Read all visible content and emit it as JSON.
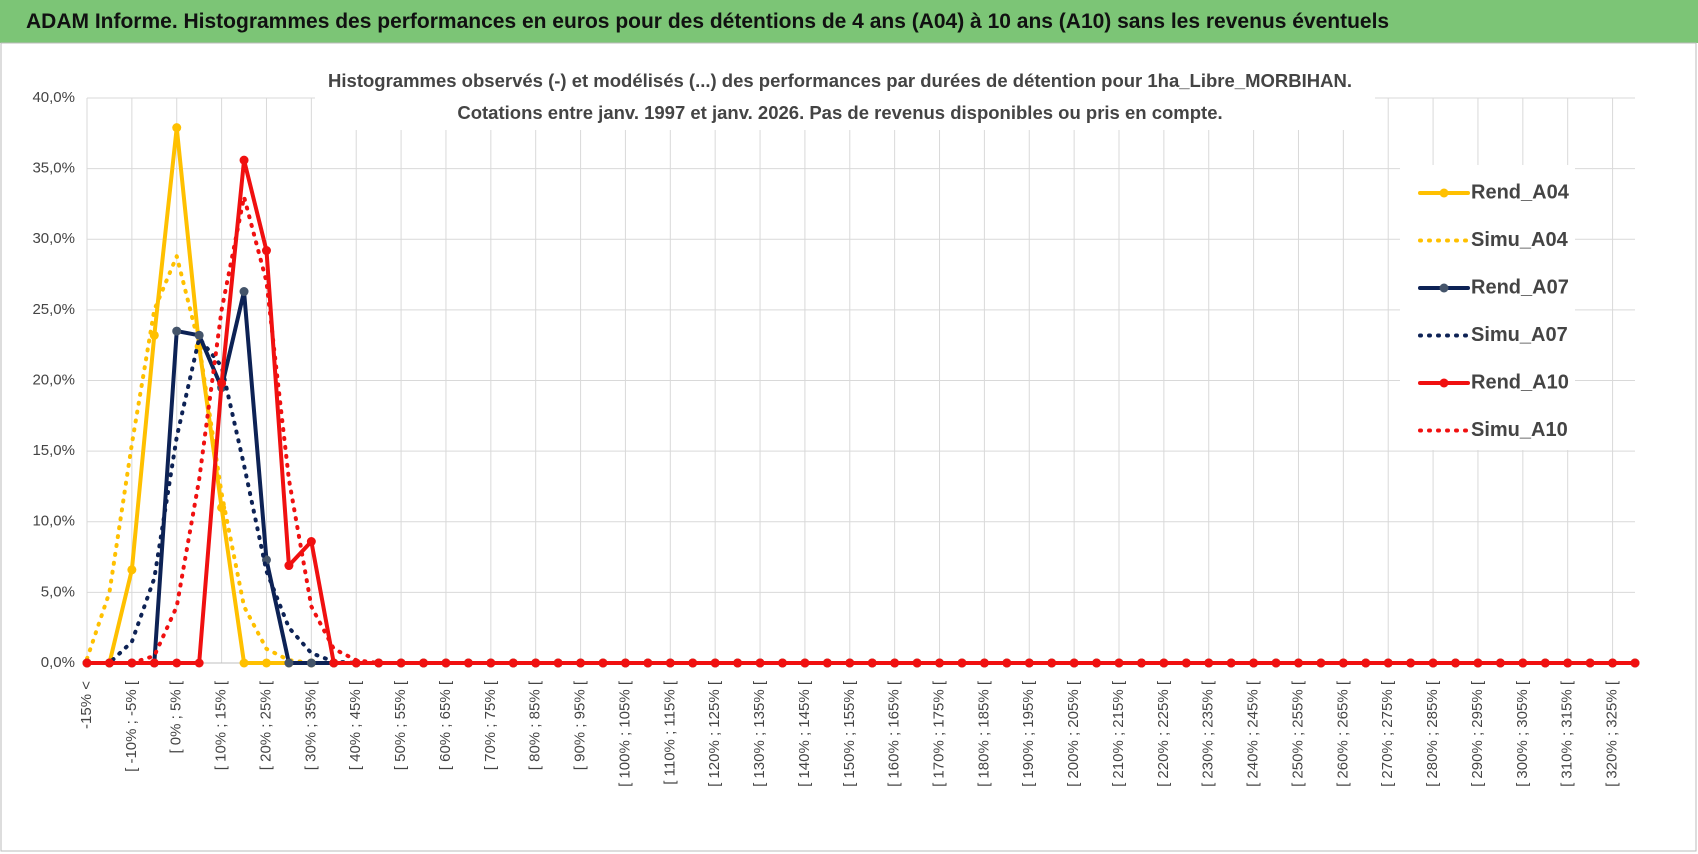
{
  "header": {
    "title": "ADAM Informe. Histogrammes des performances en euros pour des détentions de 4 ans (A04) à 10 ans (A10) sans les revenus éventuels"
  },
  "chart_data": {
    "type": "line",
    "title": "Histogrammes observés (-) et modélisés (...) des performances par durées de détention pour 1ha_Libre_MORBIHAN.",
    "subtitle": "Cotations entre janv. 1997 et janv. 2026. Pas de revenus disponibles ou pris en compte.",
    "categories": [
      "-15% <",
      null,
      "[ -10% ; -5% [",
      null,
      "[ 0% ; 5% [",
      null,
      "[ 10% ; 15% [",
      null,
      "[ 20% ; 25% [",
      null,
      "[ 30% ; 35% [",
      null,
      "[ 40% ; 45% [",
      null,
      "[ 50% ; 55% [",
      null,
      "[ 60% ; 65% [",
      null,
      "[ 70% ; 75% [",
      null,
      "[ 80% ; 85% [",
      null,
      "[ 90% ; 95% [",
      null,
      "[ 100% ; 105% [",
      null,
      "[ 110% ; 115% [",
      null,
      "[ 120% ; 125% [",
      null,
      "[ 130% ; 135% [",
      null,
      "[ 140% ; 145% [",
      null,
      "[ 150% ; 155% [",
      null,
      "[ 160% ; 165% [",
      null,
      "[ 170% ; 175% [",
      null,
      "[ 180% ; 185% [",
      null,
      "[ 190% ; 195% [",
      null,
      "[ 200% ; 205% [",
      null,
      "[ 210% ; 215% [",
      null,
      "[ 220% ; 225% [",
      null,
      "[ 230% ; 235% [",
      null,
      "[ 240% ; 245% [",
      null,
      "[ 250% ; 255% [",
      null,
      "[ 260% ; 265% [",
      null,
      "[ 270% ; 275% [",
      null,
      "[ 280% ; 285% [",
      null,
      "[ 290% ; 295% [",
      null,
      "[ 300% ; 305% [",
      null,
      "[ 310% ; 315% [",
      null,
      "[ 320% ; 325% [",
      null
    ],
    "series": [
      {
        "name": "Rend_A04",
        "color": "#ffc000",
        "style": "solid",
        "values": [
          0,
          0,
          6.6,
          23.2,
          37.9,
          22.4,
          11,
          0,
          0,
          0,
          0,
          0,
          0,
          0,
          0,
          0,
          0,
          0,
          0,
          0,
          0,
          0,
          0,
          0,
          0,
          0,
          0,
          0,
          0,
          0,
          0,
          0,
          0,
          0,
          0,
          0,
          0,
          0,
          0,
          0,
          0,
          0,
          0,
          0,
          0,
          0,
          0,
          0,
          0,
          0,
          0,
          0,
          0,
          0,
          0,
          0,
          0,
          0,
          0,
          0,
          0,
          0,
          0,
          0,
          0,
          0,
          0,
          0,
          0,
          0
        ]
      },
      {
        "name": "Simu_A04",
        "color": "#ffc000",
        "style": "dotted",
        "values": [
          0.3,
          5,
          15.5,
          25,
          28.8,
          22.5,
          12,
          4,
          1,
          0.2,
          0,
          0,
          0,
          0,
          0,
          0,
          0,
          0,
          0,
          0,
          0,
          0,
          0,
          0,
          0,
          0,
          0,
          0,
          0,
          0,
          0,
          0,
          0,
          0,
          0,
          0,
          0,
          0,
          0,
          0,
          0,
          0,
          0,
          0,
          0,
          0,
          0,
          0,
          0,
          0,
          0,
          0,
          0,
          0,
          0,
          0,
          0,
          0,
          0,
          0,
          0,
          0,
          0,
          0,
          0,
          0,
          0,
          0,
          0,
          0
        ]
      },
      {
        "name": "Rend_A07",
        "color": "#0d2255",
        "style": "solid",
        "values": [
          0,
          0,
          0,
          0,
          23.5,
          23.2,
          19.5,
          26.3,
          7.3,
          0,
          0,
          0,
          0,
          0,
          0,
          0,
          0,
          0,
          0,
          0,
          0,
          0,
          0,
          0,
          0,
          0,
          0,
          0,
          0,
          0,
          0,
          0,
          0,
          0,
          0,
          0,
          0,
          0,
          0,
          0,
          0,
          0,
          0,
          0,
          0,
          0,
          0,
          0,
          0,
          0,
          0,
          0,
          0,
          0,
          0,
          0,
          0,
          0,
          0,
          0,
          0,
          0,
          0,
          0,
          0,
          0,
          0,
          0,
          0,
          0
        ]
      },
      {
        "name": "Simu_A07",
        "color": "#0d2255",
        "style": "dotted",
        "values": [
          0,
          0,
          1.5,
          6,
          16,
          23,
          21,
          14,
          6.5,
          2.5,
          0.7,
          0.1,
          0,
          0,
          0,
          0,
          0,
          0,
          0,
          0,
          0,
          0,
          0,
          0,
          0,
          0,
          0,
          0,
          0,
          0,
          0,
          0,
          0,
          0,
          0,
          0,
          0,
          0,
          0,
          0,
          0,
          0,
          0,
          0,
          0,
          0,
          0,
          0,
          0,
          0,
          0,
          0,
          0,
          0,
          0,
          0,
          0,
          0,
          0,
          0,
          0,
          0,
          0,
          0,
          0,
          0,
          0,
          0,
          0,
          0
        ]
      },
      {
        "name": "Rend_A10",
        "color": "#f01010",
        "style": "solid",
        "values": [
          0,
          0,
          0,
          0,
          0,
          0,
          19.8,
          35.6,
          29.2,
          6.9,
          8.6,
          0,
          0,
          0,
          0,
          0,
          0,
          0,
          0,
          0,
          0,
          0,
          0,
          0,
          0,
          0,
          0,
          0,
          0,
          0,
          0,
          0,
          0,
          0,
          0,
          0,
          0,
          0,
          0,
          0,
          0,
          0,
          0,
          0,
          0,
          0,
          0,
          0,
          0,
          0,
          0,
          0,
          0,
          0,
          0,
          0,
          0,
          0,
          0,
          0,
          0,
          0,
          0,
          0,
          0,
          0,
          0,
          0,
          0,
          0
        ]
      },
      {
        "name": "Simu_A10",
        "color": "#f01010",
        "style": "dotted",
        "values": [
          0,
          0,
          0,
          0.5,
          4,
          13,
          25,
          33,
          27,
          13,
          4,
          1,
          0.2,
          0,
          0,
          0,
          0,
          0,
          0,
          0,
          0,
          0,
          0,
          0,
          0,
          0,
          0,
          0,
          0,
          0,
          0,
          0,
          0,
          0,
          0,
          0,
          0,
          0,
          0,
          0,
          0,
          0,
          0,
          0,
          0,
          0,
          0,
          0,
          0,
          0,
          0,
          0,
          0,
          0,
          0,
          0,
          0,
          0,
          0,
          0,
          0,
          0,
          0,
          0,
          0,
          0,
          0,
          0,
          0,
          0
        ]
      }
    ],
    "ylim": [
      0,
      40
    ],
    "yticks": [
      {
        "value": 0,
        "label": "0,0%"
      },
      {
        "value": 5,
        "label": "5,0%"
      },
      {
        "value": 10,
        "label": "10,0%"
      },
      {
        "value": 15,
        "label": "15,0%"
      },
      {
        "value": 20,
        "label": "20,0%"
      },
      {
        "value": 25,
        "label": "25,0%"
      },
      {
        "value": 30,
        "label": "30,0%"
      },
      {
        "value": 35,
        "label": "35,0%"
      },
      {
        "value": 40,
        "label": "40,0%"
      }
    ],
    "grid": true,
    "legend": "right"
  }
}
